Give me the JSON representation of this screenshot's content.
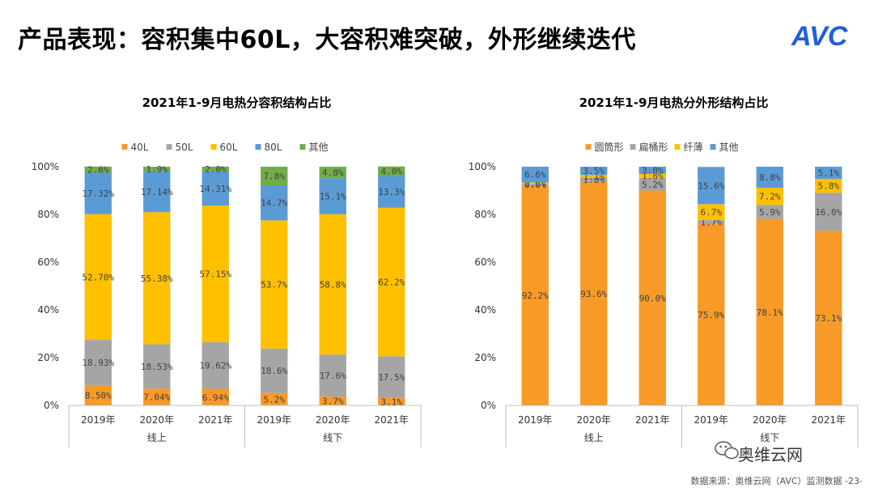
{
  "page": {
    "title": "产品表现：容积集中60L，大容积难突破，外形继续迭代",
    "logo_text": "AVC",
    "source": "数据来源：奥维云网（AVC）监测数据 -23-",
    "wechat_name": "奥维云网"
  },
  "colors": {
    "orange": "#F79A28",
    "gray": "#A5A5A5",
    "yellow": "#FFC000",
    "blue": "#5B9BD5",
    "green": "#70AD47",
    "logo_blue": "#1F5FD9"
  },
  "chart_data": [
    {
      "type": "bar",
      "stacked": true,
      "normalized": true,
      "title": "2021年1-9月电热分容积结构占比",
      "categories": [
        "2019年",
        "2020年",
        "2021年",
        "2019年",
        "2020年",
        "2021年"
      ],
      "groups": [
        {
          "label": "线上",
          "categories": [
            "2019年",
            "2020年",
            "2021年"
          ]
        },
        {
          "label": "线下",
          "categories": [
            "2019年",
            "2020年",
            "2021年"
          ]
        }
      ],
      "ylim": [
        0,
        100
      ],
      "yticks": [
        "0%",
        "20%",
        "40%",
        "60%",
        "80%",
        "100%"
      ],
      "legend_position": "top",
      "series": [
        {
          "name": "40L",
          "color": "#F79A28",
          "values": [
            8.5,
            7.04,
            6.94,
            5.2,
            3.7,
            3.1
          ],
          "labels": [
            "8.50%",
            "7.04%",
            "6.94%",
            "5.2%",
            "3.7%",
            "3.1%"
          ]
        },
        {
          "name": "50L",
          "color": "#A5A5A5",
          "values": [
            18.93,
            18.53,
            19.62,
            18.6,
            17.6,
            17.5
          ],
          "labels": [
            "18.93%",
            "18.53%",
            "19.62%",
            "18.6%",
            "17.6%",
            "17.5%"
          ]
        },
        {
          "name": "60L",
          "color": "#FFC000",
          "values": [
            52.7,
            55.38,
            57.15,
            53.7,
            58.8,
            62.2
          ],
          "labels": [
            "52.70%",
            "55.38%",
            "57.15%",
            "53.7%",
            "58.8%",
            "62.2%"
          ]
        },
        {
          "name": "80L",
          "color": "#5B9BD5",
          "values": [
            17.32,
            17.14,
            14.31,
            14.7,
            15.1,
            13.3
          ],
          "labels": [
            "17.32%",
            "17.14%",
            "14.31%",
            "14.7%",
            "15.1%",
            "13.3%"
          ]
        },
        {
          "name": "其他",
          "color": "#70AD47",
          "values": [
            2.6,
            1.9,
            2.0,
            7.8,
            4.8,
            4.0
          ],
          "labels": [
            "2.6%",
            "1.9%",
            "2.0%",
            "7.8%",
            "4.8%",
            "4.0%"
          ]
        }
      ]
    },
    {
      "type": "bar",
      "stacked": true,
      "normalized": true,
      "title": "2021年1-9月电热分外形结构占比",
      "categories": [
        "2019年",
        "2020年",
        "2021年",
        "2019年",
        "2020年",
        "2021年"
      ],
      "groups": [
        {
          "label": "线上",
          "categories": [
            "2019年",
            "2020年",
            "2021年"
          ]
        },
        {
          "label": "线下",
          "categories": [
            "2019年",
            "2020年",
            "2021年"
          ]
        }
      ],
      "ylim": [
        0,
        100
      ],
      "yticks": [
        "0%",
        "20%",
        "40%",
        "60%",
        "80%",
        "100%"
      ],
      "legend_position": "top",
      "series": [
        {
          "name": "圆筒形",
          "color": "#F79A28",
          "values": [
            92.2,
            93.6,
            90.0,
            75.9,
            78.1,
            73.1
          ],
          "labels": [
            "92.2%",
            "93.6%",
            "90.0%",
            "75.9%",
            "78.1%",
            "73.1%"
          ]
        },
        {
          "name": "扁桶形",
          "color": "#A5A5A5",
          "values": [
            0.6,
            1.8,
            5.2,
            1.7,
            5.9,
            16.0
          ],
          "labels": [
            "0.6%",
            "1.8%",
            "5.2%",
            "1.7%",
            "5.9%",
            "16.0%"
          ]
        },
        {
          "name": "纤薄",
          "color": "#FFC000",
          "values": [
            0.6,
            1.1,
            1.8,
            6.7,
            7.2,
            5.8
          ],
          "labels": [
            "0.6%",
            "1.1%",
            "1.8%",
            "6.7%",
            "7.2%",
            "5.8%"
          ]
        },
        {
          "name": "其他",
          "color": "#5B9BD5",
          "values": [
            6.6,
            3.5,
            3.0,
            15.6,
            8.8,
            5.1
          ],
          "labels": [
            "6.6%",
            "3.5%",
            "3.0%",
            "15.6%",
            "8.8%",
            "5.1%"
          ]
        }
      ]
    }
  ]
}
